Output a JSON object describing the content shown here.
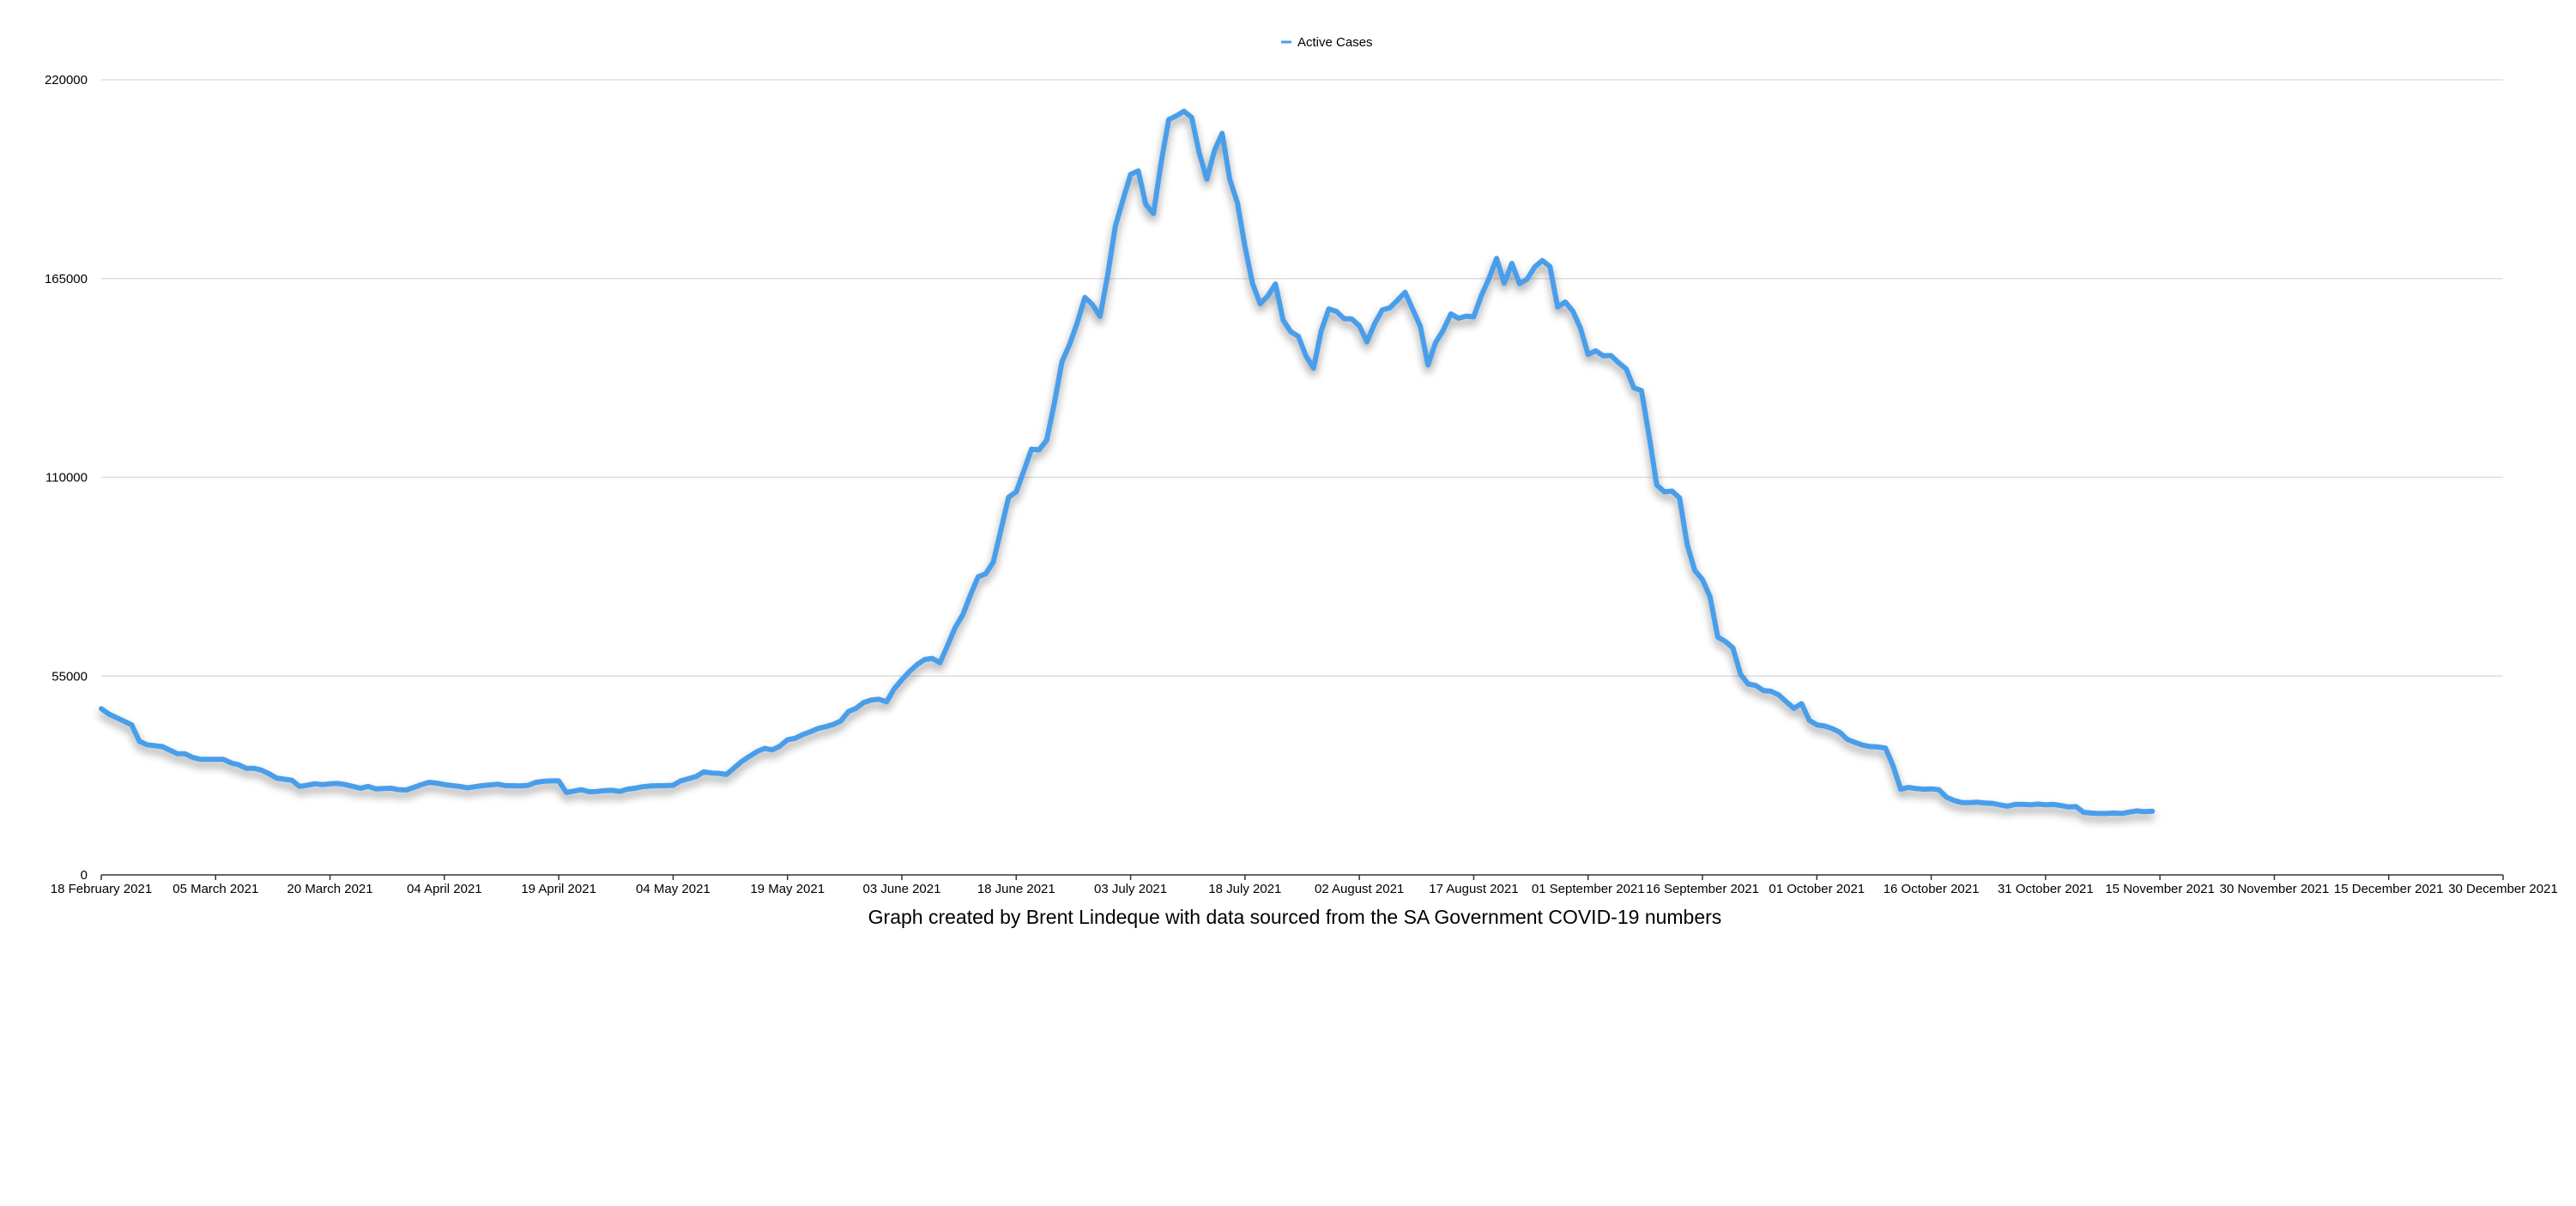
{
  "colors": {
    "series_line": "#4a9eea",
    "series_shadow": "#000000",
    "grid": "#dedede",
    "axis": "#333333",
    "background": "#ffffff"
  },
  "caption": "Graph created by Brent Lindeque with data sourced from the SA Government COVID-19 numbers",
  "chart_data": {
    "type": "line",
    "title": "",
    "xlabel": "",
    "ylabel": "",
    "legend": "top-center",
    "grid": true,
    "ylim": [
      0,
      220000
    ],
    "y_ticks": [
      0,
      55000,
      110000,
      165000,
      220000
    ],
    "y_tick_labels": [
      "0",
      "55000",
      "110000",
      "165000",
      "220000"
    ],
    "x_range_days": [
      0,
      315
    ],
    "x_ticks": [
      {
        "day": 0,
        "label": "18 February 2021"
      },
      {
        "day": 15,
        "label": "05 March 2021"
      },
      {
        "day": 30,
        "label": "20 March 2021"
      },
      {
        "day": 45,
        "label": "04 April 2021"
      },
      {
        "day": 60,
        "label": "19 April 2021"
      },
      {
        "day": 75,
        "label": "04 May 2021"
      },
      {
        "day": 90,
        "label": "19 May 2021"
      },
      {
        "day": 105,
        "label": "03 June 2021"
      },
      {
        "day": 120,
        "label": "18 June 2021"
      },
      {
        "day": 135,
        "label": "03 July 2021"
      },
      {
        "day": 150,
        "label": "18 July 2021"
      },
      {
        "day": 165,
        "label": "02 August 2021"
      },
      {
        "day": 180,
        "label": "17 August 2021"
      },
      {
        "day": 195,
        "label": "01 September 2021"
      },
      {
        "day": 210,
        "label": "16 September 2021"
      },
      {
        "day": 225,
        "label": "01 October 2021"
      },
      {
        "day": 240,
        "label": "16 October 2021"
      },
      {
        "day": 255,
        "label": "31 October 2021"
      },
      {
        "day": 270,
        "label": "15 November 2021"
      },
      {
        "day": 285,
        "label": "30 November 2021"
      },
      {
        "day": 300,
        "label": "15 December 2021"
      },
      {
        "day": 315,
        "label": "30 December 2021"
      }
    ],
    "series": [
      {
        "name": "Active Cases",
        "points": [
          [
            0,
            46000
          ],
          [
            1,
            44500
          ],
          [
            2,
            43500
          ],
          [
            3,
            42500
          ],
          [
            4,
            41500
          ],
          [
            5,
            37000
          ],
          [
            6,
            36000
          ],
          [
            8,
            35500
          ],
          [
            9,
            34500
          ],
          [
            10,
            33500
          ],
          [
            11,
            33500
          ],
          [
            12,
            32500
          ],
          [
            13,
            32000
          ],
          [
            15,
            32000
          ],
          [
            16,
            32000
          ],
          [
            17,
            31000
          ],
          [
            18,
            30500
          ],
          [
            19,
            29500
          ],
          [
            20,
            29500
          ],
          [
            21,
            29000
          ],
          [
            22,
            28000
          ],
          [
            23,
            26800
          ],
          [
            25,
            26200
          ],
          [
            26,
            24500
          ],
          [
            27,
            24800
          ],
          [
            28,
            25200
          ],
          [
            29,
            25000
          ],
          [
            30,
            25200
          ],
          [
            31,
            25300
          ],
          [
            32,
            25000
          ],
          [
            33,
            24500
          ],
          [
            34,
            24000
          ],
          [
            35,
            24500
          ],
          [
            36,
            23800
          ],
          [
            38,
            24000
          ],
          [
            39,
            23600
          ],
          [
            40,
            23500
          ],
          [
            41,
            24200
          ],
          [
            42,
            25000
          ],
          [
            43,
            25600
          ],
          [
            44,
            25400
          ],
          [
            45,
            25000
          ],
          [
            46,
            24700
          ],
          [
            47,
            24500
          ],
          [
            48,
            24100
          ],
          [
            49,
            24400
          ],
          [
            50,
            24700
          ],
          [
            51,
            24900
          ],
          [
            52,
            25100
          ],
          [
            53,
            24700
          ],
          [
            55,
            24600
          ],
          [
            56,
            24800
          ],
          [
            57,
            25600
          ],
          [
            58,
            25900
          ],
          [
            59,
            26000
          ],
          [
            60,
            26000
          ],
          [
            61,
            22800
          ],
          [
            63,
            23600
          ],
          [
            64,
            23000
          ],
          [
            65,
            23100
          ],
          [
            66,
            23300
          ],
          [
            67,
            23400
          ],
          [
            68,
            23100
          ],
          [
            69,
            23700
          ],
          [
            70,
            24000
          ],
          [
            71,
            24400
          ],
          [
            72,
            24600
          ],
          [
            74,
            24700
          ],
          [
            75,
            24800
          ],
          [
            76,
            26000
          ],
          [
            78,
            27200
          ],
          [
            79,
            28500
          ],
          [
            80,
            28200
          ],
          [
            81,
            28100
          ],
          [
            82,
            27800
          ],
          [
            83,
            29600
          ],
          [
            84,
            31400
          ],
          [
            85,
            32800
          ],
          [
            86,
            34100
          ],
          [
            87,
            35000
          ],
          [
            88,
            34600
          ],
          [
            89,
            35600
          ],
          [
            90,
            37400
          ],
          [
            91,
            37800
          ],
          [
            92,
            38800
          ],
          [
            93,
            39600
          ],
          [
            94,
            40500
          ],
          [
            95,
            41000
          ],
          [
            96,
            41600
          ],
          [
            97,
            42600
          ],
          [
            98,
            45200
          ],
          [
            99,
            46100
          ],
          [
            100,
            47700
          ],
          [
            101,
            48400
          ],
          [
            102,
            48600
          ],
          [
            103,
            47900
          ],
          [
            104,
            51500
          ],
          [
            105,
            54000
          ],
          [
            106,
            56300
          ],
          [
            107,
            58200
          ],
          [
            108,
            59600
          ],
          [
            109,
            59900
          ],
          [
            110,
            58700
          ],
          [
            111,
            63500
          ],
          [
            112,
            68500
          ],
          [
            113,
            72000
          ],
          [
            114,
            77500
          ],
          [
            115,
            82500
          ],
          [
            116,
            83300
          ],
          [
            117,
            86600
          ],
          [
            118,
            95500
          ],
          [
            119,
            104500
          ],
          [
            120,
            106000
          ],
          [
            121,
            111800
          ],
          [
            122,
            117800
          ],
          [
            123,
            117600
          ],
          [
            124,
            120300
          ],
          [
            125,
            130500
          ],
          [
            126,
            142000
          ],
          [
            127,
            146800
          ],
          [
            128,
            152800
          ],
          [
            129,
            159800
          ],
          [
            130,
            157800
          ],
          [
            131,
            154500
          ],
          [
            132,
            166000
          ],
          [
            133,
            179500
          ],
          [
            134,
            186800
          ],
          [
            135,
            193800
          ],
          [
            136,
            194800
          ],
          [
            137,
            185500
          ],
          [
            138,
            183000
          ],
          [
            139,
            197000
          ],
          [
            140,
            209000
          ],
          [
            141,
            210000
          ],
          [
            142,
            211300
          ],
          [
            143,
            209600
          ],
          [
            144,
            199800
          ],
          [
            145,
            192500
          ],
          [
            146,
            200400
          ],
          [
            147,
            205200
          ],
          [
            148,
            192500
          ],
          [
            149,
            186000
          ],
          [
            150,
            173800
          ],
          [
            151,
            163600
          ],
          [
            152,
            158000
          ],
          [
            153,
            160200
          ],
          [
            154,
            163500
          ],
          [
            155,
            153500
          ],
          [
            156,
            150300
          ],
          [
            157,
            149000
          ],
          [
            158,
            143600
          ],
          [
            159,
            140200
          ],
          [
            160,
            150500
          ],
          [
            161,
            156600
          ],
          [
            162,
            155900
          ],
          [
            163,
            153900
          ],
          [
            164,
            153800
          ],
          [
            165,
            151900
          ],
          [
            166,
            147500
          ],
          [
            167,
            152500
          ],
          [
            168,
            156300
          ],
          [
            169,
            156900
          ],
          [
            170,
            159000
          ],
          [
            171,
            161200
          ],
          [
            172,
            156500
          ],
          [
            173,
            151800
          ],
          [
            174,
            141100
          ],
          [
            175,
            147300
          ],
          [
            176,
            150700
          ],
          [
            177,
            155200
          ],
          [
            178,
            154000
          ],
          [
            179,
            154600
          ],
          [
            180,
            154400
          ],
          [
            181,
            160300
          ],
          [
            182,
            165000
          ],
          [
            183,
            170600
          ],
          [
            184,
            163700
          ],
          [
            185,
            169200
          ],
          [
            186,
            163600
          ],
          [
            187,
            164800
          ],
          [
            188,
            168200
          ],
          [
            189,
            170000
          ],
          [
            190,
            168300
          ],
          [
            191,
            157100
          ],
          [
            192,
            158500
          ],
          [
            193,
            156000
          ],
          [
            194,
            151300
          ],
          [
            195,
            144000
          ],
          [
            196,
            145000
          ],
          [
            197,
            143600
          ],
          [
            198,
            143700
          ],
          [
            199,
            141700
          ],
          [
            200,
            140000
          ],
          [
            201,
            134800
          ],
          [
            202,
            134000
          ],
          [
            203,
            121500
          ],
          [
            204,
            107900
          ],
          [
            205,
            106000
          ],
          [
            206,
            106200
          ],
          [
            207,
            104300
          ],
          [
            208,
            91400
          ],
          [
            209,
            84200
          ],
          [
            210,
            81700
          ],
          [
            211,
            76900
          ],
          [
            212,
            65800
          ],
          [
            213,
            64600
          ],
          [
            214,
            62800
          ],
          [
            215,
            55500
          ],
          [
            216,
            52800
          ],
          [
            217,
            52400
          ],
          [
            218,
            51000
          ],
          [
            219,
            50800
          ],
          [
            220,
            49800
          ],
          [
            221,
            47900
          ],
          [
            222,
            46100
          ],
          [
            223,
            47400
          ],
          [
            224,
            42800
          ],
          [
            225,
            41500
          ],
          [
            226,
            41200
          ],
          [
            227,
            40500
          ],
          [
            228,
            39500
          ],
          [
            229,
            37500
          ],
          [
            230,
            36700
          ],
          [
            231,
            35900
          ],
          [
            232,
            35500
          ],
          [
            233,
            35400
          ],
          [
            234,
            35100
          ],
          [
            235,
            30200
          ],
          [
            236,
            23700
          ],
          [
            237,
            24200
          ],
          [
            238,
            23900
          ],
          [
            239,
            23700
          ],
          [
            240,
            23800
          ],
          [
            241,
            23600
          ],
          [
            242,
            21500
          ],
          [
            243,
            20600
          ],
          [
            244,
            20000
          ],
          [
            245,
            20000
          ],
          [
            246,
            20100
          ],
          [
            247,
            19900
          ],
          [
            248,
            19800
          ],
          [
            249,
            19400
          ],
          [
            250,
            19000
          ],
          [
            251,
            19500
          ],
          [
            252,
            19500
          ],
          [
            253,
            19400
          ],
          [
            254,
            19600
          ],
          [
            255,
            19400
          ],
          [
            256,
            19500
          ],
          [
            257,
            19200
          ],
          [
            258,
            18800
          ],
          [
            259,
            18900
          ],
          [
            260,
            17300
          ],
          [
            261,
            17100
          ],
          [
            262,
            17000
          ],
          [
            263,
            17000
          ],
          [
            264,
            17100
          ],
          [
            265,
            17000
          ],
          [
            266,
            17400
          ],
          [
            267,
            17700
          ],
          [
            268,
            17500
          ],
          [
            269,
            17600
          ]
        ]
      }
    ]
  }
}
